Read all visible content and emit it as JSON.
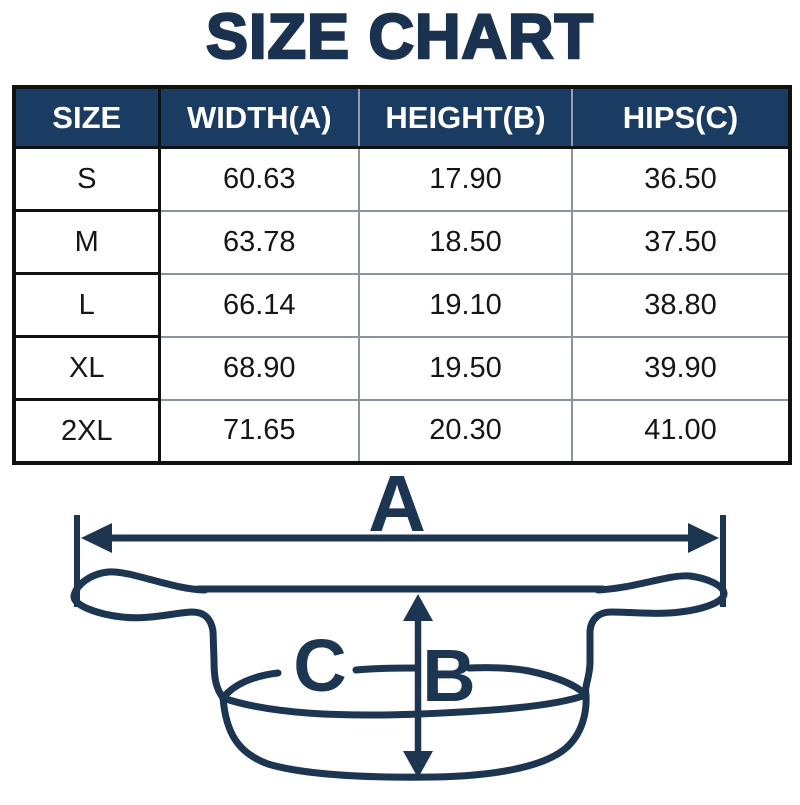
{
  "title": "SIZE CHART",
  "table": {
    "headers": [
      "SIZE",
      "WIDTH(A)",
      "HEIGHT(B)",
      "HIPS(C)"
    ],
    "rows": [
      {
        "size": "S",
        "width": "60.63",
        "height": "17.90",
        "hips": "36.50"
      },
      {
        "size": "M",
        "width": "63.78",
        "height": "18.50",
        "hips": "37.50"
      },
      {
        "size": "L",
        "width": "66.14",
        "height": "19.10",
        "hips": "38.80"
      },
      {
        "size": "XL",
        "width": "68.90",
        "height": "19.50",
        "hips": "39.90"
      },
      {
        "size": "2XL",
        "width": "71.65",
        "height": "20.30",
        "hips": "41.00"
      }
    ]
  },
  "chart_data": {
    "type": "table",
    "title": "SIZE CHART",
    "columns": [
      "SIZE",
      "WIDTH(A)",
      "HEIGHT(B)",
      "HIPS(C)"
    ],
    "rows": [
      [
        "S",
        60.63,
        17.9,
        36.5
      ],
      [
        "M",
        63.78,
        18.5,
        37.5
      ],
      [
        "L",
        66.14,
        19.1,
        38.8
      ],
      [
        "XL",
        68.9,
        19.5,
        39.9
      ],
      [
        "2XL",
        71.65,
        20.3,
        41.0
      ]
    ]
  },
  "diagram": {
    "label_a": "A",
    "label_b": "B",
    "label_c": "C"
  },
  "colors": {
    "title_navy": "#1a3150",
    "header_navy": "#1b3c62",
    "diagram_navy": "#1c3551",
    "border_black": "#111111",
    "grid_gray": "#8b939b"
  }
}
